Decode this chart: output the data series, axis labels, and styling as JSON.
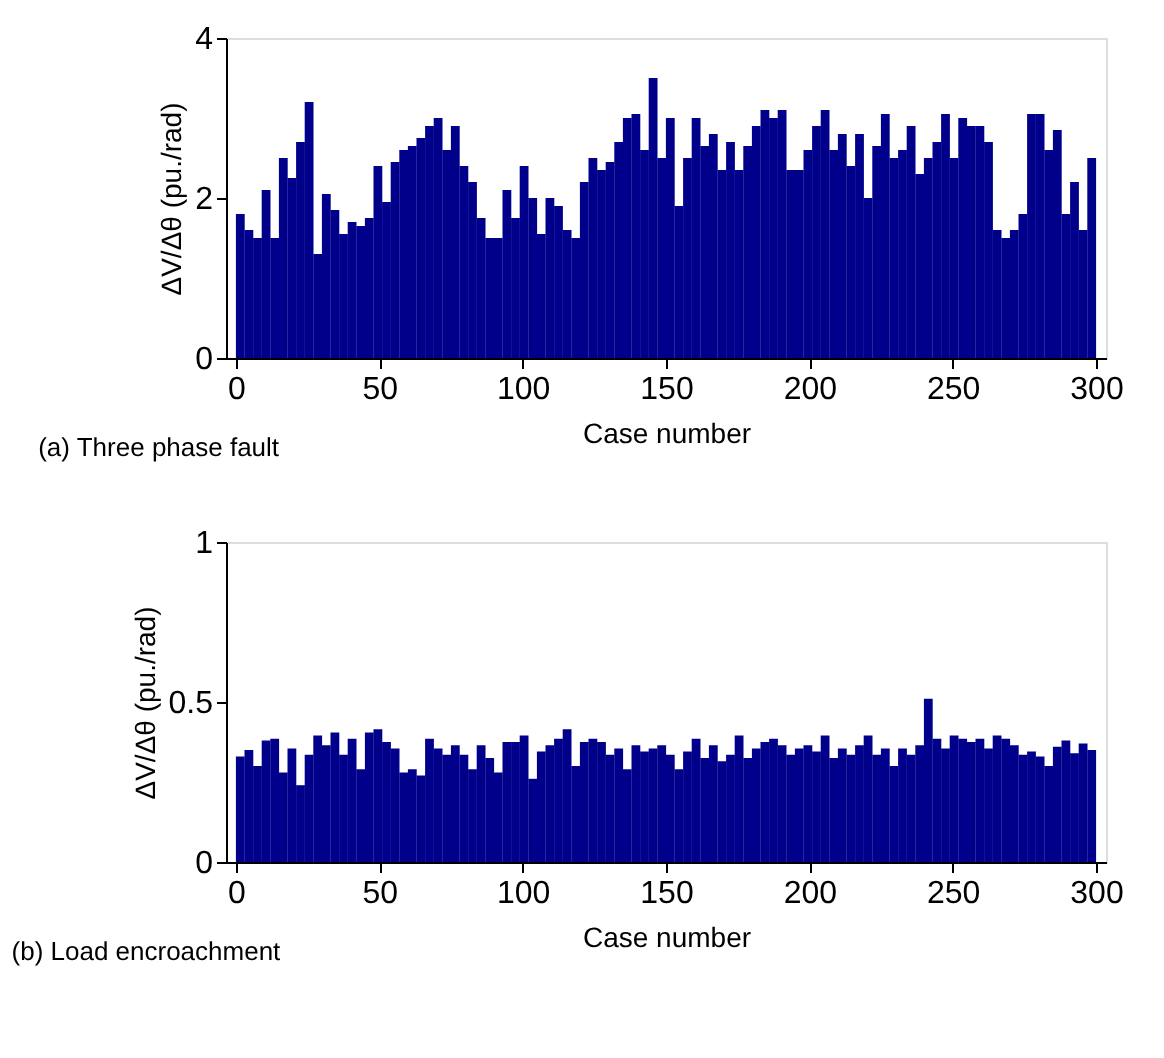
{
  "chart_data": [
    {
      "type": "bar",
      "xlabel": "Case number",
      "ylabel": "ΔV/Δθ  (pu./rad)",
      "annotations": [
        "(a) Three phase fault"
      ],
      "xlim": [
        0,
        300
      ],
      "xticks": [
        0,
        50,
        100,
        150,
        200,
        250,
        300
      ],
      "ylim": [
        0,
        4
      ],
      "yticks": [
        0,
        2,
        4
      ],
      "grid": false,
      "x": [
        1.5,
        4.5,
        7.5,
        10.5,
        13.5,
        16.5,
        19.5,
        22.5,
        25.5,
        28.5,
        31.5,
        34.5,
        37.5,
        40.5,
        43.5,
        46.5,
        49.5,
        52.5,
        55.5,
        58.5,
        61.5,
        64.5,
        67.5,
        70.5,
        73.5,
        76.5,
        79.5,
        82.5,
        85.5,
        88.5,
        91.5,
        94.5,
        97.5,
        100.5,
        103.5,
        106.5,
        109.5,
        112.5,
        115.5,
        118.5,
        121.5,
        124.5,
        127.5,
        130.5,
        133.5,
        136.5,
        139.5,
        142.5,
        145.5,
        148.5,
        151.5,
        154.5,
        157.5,
        160.5,
        163.5,
        166.5,
        169.5,
        172.5,
        175.5,
        178.5,
        181.5,
        184.5,
        187.5,
        190.5,
        193.5,
        196.5,
        199.5,
        202.5,
        205.5,
        208.5,
        211.5,
        214.5,
        217.5,
        220.5,
        223.5,
        226.5,
        229.5,
        232.5,
        235.5,
        238.5,
        241.5,
        244.5,
        247.5,
        250.5,
        253.5,
        256.5,
        259.5,
        262.5,
        265.5,
        268.5,
        271.5,
        274.5,
        277.5,
        280.5,
        283.5,
        286.5,
        289.5,
        292.5,
        295.5,
        298.5
      ],
      "series": [
        {
          "color": "#00008b",
          "values": [
            1.8,
            1.6,
            1.5,
            2.1,
            1.5,
            2.5,
            2.25,
            2.7,
            3.2,
            1.3,
            2.05,
            1.85,
            1.55,
            1.7,
            1.65,
            1.75,
            2.4,
            1.95,
            2.45,
            2.6,
            2.65,
            2.75,
            2.9,
            3.0,
            2.6,
            2.9,
            2.4,
            2.2,
            1.75,
            1.5,
            1.5,
            2.1,
            1.75,
            2.4,
            2.0,
            1.55,
            2.0,
            1.9,
            1.6,
            1.5,
            2.2,
            2.5,
            2.35,
            2.45,
            2.7,
            3.0,
            3.05,
            2.6,
            3.5,
            2.5,
            3.0,
            1.9,
            2.5,
            3.0,
            2.65,
            2.8,
            2.35,
            2.7,
            2.35,
            2.65,
            2.9,
            3.1,
            3.0,
            3.1,
            2.35,
            2.35,
            2.6,
            2.9,
            3.1,
            2.6,
            2.8,
            2.4,
            2.8,
            2.0,
            2.65,
            3.05,
            2.5,
            2.6,
            2.9,
            2.3,
            2.5,
            2.7,
            3.05,
            2.5,
            3.0,
            2.9,
            2.9,
            2.7,
            1.6,
            1.5,
            1.6,
            1.8,
            3.05,
            3.05,
            2.6,
            2.85,
            1.8,
            2.2,
            1.6,
            2.5
          ]
        }
      ]
    },
    {
      "type": "bar",
      "xlabel": "Case number",
      "ylabel": "ΔV/Δθ  (pu./rad)",
      "annotations": [
        "(b) Load encroachment"
      ],
      "xlim": [
        0,
        300
      ],
      "xticks": [
        0,
        50,
        100,
        150,
        200,
        250,
        300
      ],
      "ylim": [
        0,
        1
      ],
      "yticks": [
        0,
        0.5,
        1
      ],
      "grid": false,
      "x": [
        1.5,
        4.5,
        7.5,
        10.5,
        13.5,
        16.5,
        19.5,
        22.5,
        25.5,
        28.5,
        31.5,
        34.5,
        37.5,
        40.5,
        43.5,
        46.5,
        49.5,
        52.5,
        55.5,
        58.5,
        61.5,
        64.5,
        67.5,
        70.5,
        73.5,
        76.5,
        79.5,
        82.5,
        85.5,
        88.5,
        91.5,
        94.5,
        97.5,
        100.5,
        103.5,
        106.5,
        109.5,
        112.5,
        115.5,
        118.5,
        121.5,
        124.5,
        127.5,
        130.5,
        133.5,
        136.5,
        139.5,
        142.5,
        145.5,
        148.5,
        151.5,
        154.5,
        157.5,
        160.5,
        163.5,
        166.5,
        169.5,
        172.5,
        175.5,
        178.5,
        181.5,
        184.5,
        187.5,
        190.5,
        193.5,
        196.5,
        199.5,
        202.5,
        205.5,
        208.5,
        211.5,
        214.5,
        217.5,
        220.5,
        223.5,
        226.5,
        229.5,
        232.5,
        235.5,
        238.5,
        241.5,
        244.5,
        247.5,
        250.5,
        253.5,
        256.5,
        259.5,
        262.5,
        265.5,
        268.5,
        271.5,
        274.5,
        277.5,
        280.5,
        283.5,
        286.5,
        289.5,
        292.5,
        295.5,
        298.5
      ],
      "series": [
        {
          "color": "#00008b",
          "values": [
            0.33,
            0.35,
            0.3,
            0.38,
            0.385,
            0.28,
            0.355,
            0.24,
            0.335,
            0.395,
            0.365,
            0.405,
            0.335,
            0.385,
            0.29,
            0.405,
            0.415,
            0.375,
            0.355,
            0.28,
            0.29,
            0.27,
            0.385,
            0.355,
            0.335,
            0.365,
            0.335,
            0.29,
            0.365,
            0.325,
            0.28,
            0.375,
            0.375,
            0.395,
            0.26,
            0.345,
            0.365,
            0.385,
            0.415,
            0.3,
            0.375,
            0.385,
            0.375,
            0.335,
            0.355,
            0.29,
            0.365,
            0.345,
            0.355,
            0.365,
            0.335,
            0.29,
            0.345,
            0.385,
            0.325,
            0.365,
            0.315,
            0.335,
            0.395,
            0.325,
            0.355,
            0.375,
            0.385,
            0.365,
            0.335,
            0.355,
            0.365,
            0.345,
            0.395,
            0.325,
            0.355,
            0.335,
            0.365,
            0.395,
            0.335,
            0.355,
            0.3,
            0.355,
            0.335,
            0.365,
            0.51,
            0.385,
            0.355,
            0.395,
            0.385,
            0.375,
            0.385,
            0.355,
            0.395,
            0.385,
            0.365,
            0.335,
            0.345,
            0.33,
            0.3,
            0.36,
            0.38,
            0.34,
            0.37,
            0.35
          ]
        }
      ]
    }
  ]
}
